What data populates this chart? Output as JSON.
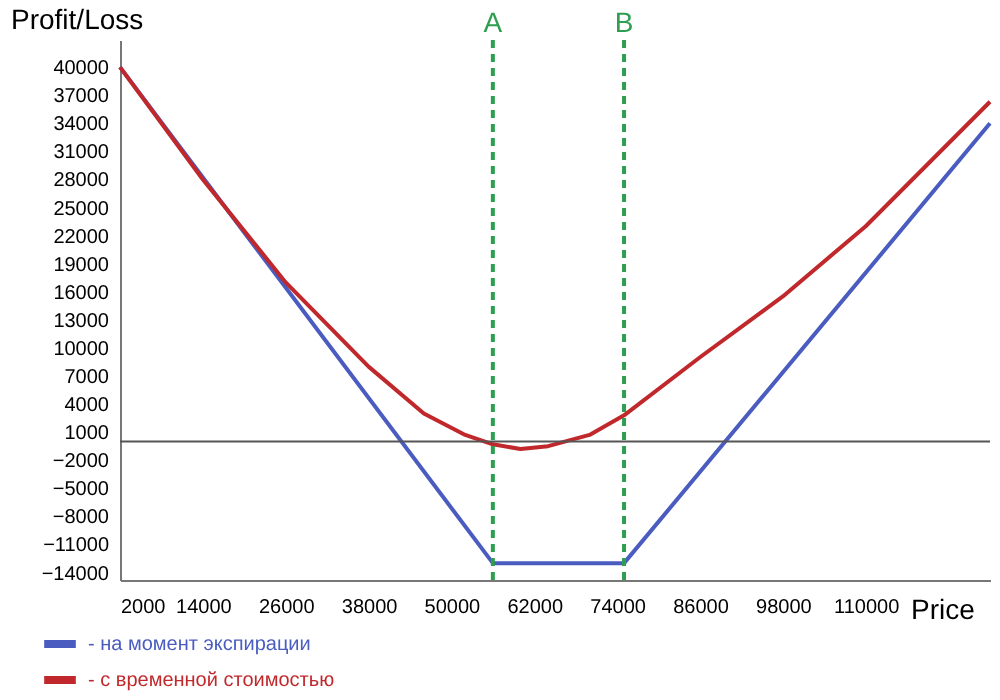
{
  "chart_data": {
    "type": "line",
    "xlabel": "Price",
    "ylabel": "Profit/Loss",
    "xlim": [
      2000,
      128000
    ],
    "ylim": [
      -14800,
      42900
    ],
    "xticks": [
      2000,
      14000,
      26000,
      38000,
      50000,
      62000,
      74000,
      86000,
      98000,
      110000
    ],
    "yticks": [
      40000,
      37000,
      34000,
      31000,
      28000,
      25000,
      22000,
      19000,
      16000,
      13000,
      10000,
      7000,
      4000,
      1000,
      -2000,
      -5000,
      -8000,
      -11000,
      -14000
    ],
    "grid": false,
    "legend": "bottom left",
    "marker": "none",
    "line_style": "solid",
    "series": [
      {
        "name": "- на момент экспирации",
        "color": "#4a5cc0",
        "x": [
          2000,
          56000,
          75000,
          128000
        ],
        "values": [
          40000,
          -13000,
          -13000,
          34000
        ]
      },
      {
        "name": "- с временной стоимостью",
        "color": "#c0282c",
        "x": [
          2000,
          14000,
          26000,
          38000,
          46000,
          52000,
          56000,
          60000,
          64000,
          70000,
          75000,
          86000,
          98000,
          110000,
          128000
        ],
        "values": [
          40000,
          28000,
          17000,
          8000,
          3000,
          700,
          -300,
          -800,
          -500,
          700,
          2800,
          9000,
          15500,
          23000,
          36300
        ]
      }
    ],
    "ref_lines": [
      {
        "axis": "y",
        "value": 0,
        "label": null,
        "color": "#555555",
        "line_style": "solid"
      },
      {
        "axis": "x",
        "value": 56000,
        "label": "A",
        "color": "#2e9e50",
        "line_style": "dashed"
      },
      {
        "axis": "x",
        "value": 75000,
        "label": "B",
        "color": "#2e9e50",
        "line_style": "dashed"
      }
    ]
  }
}
